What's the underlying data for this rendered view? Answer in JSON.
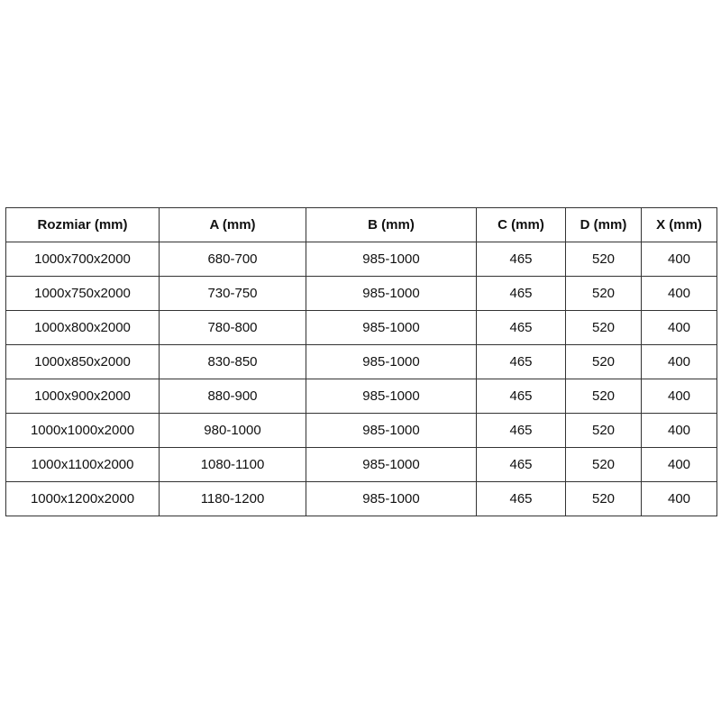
{
  "headers": [
    "Rozmiar (mm)",
    "A (mm)",
    "B (mm)",
    "C (mm)",
    "D (mm)",
    "X (mm)"
  ],
  "rows": [
    [
      "1000x700x2000",
      "680-700",
      "985-1000",
      "465",
      "520",
      "400"
    ],
    [
      "1000x750x2000",
      "730-750",
      "985-1000",
      "465",
      "520",
      "400"
    ],
    [
      "1000x800x2000",
      "780-800",
      "985-1000",
      "465",
      "520",
      "400"
    ],
    [
      "1000x850x2000",
      "830-850",
      "985-1000",
      "465",
      "520",
      "400"
    ],
    [
      "1000x900x2000",
      "880-900",
      "985-1000",
      "465",
      "520",
      "400"
    ],
    [
      "1000x1000x2000",
      "980-1000",
      "985-1000",
      "465",
      "520",
      "400"
    ],
    [
      "1000x1100x2000",
      "1080-1100",
      "985-1000",
      "465",
      "520",
      "400"
    ],
    [
      "1000x1200x2000",
      "1180-1200",
      "985-1000",
      "465",
      "520",
      "400"
    ]
  ]
}
